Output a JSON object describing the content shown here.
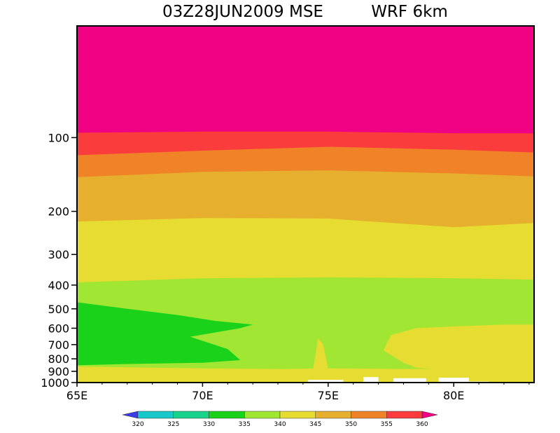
{
  "chart_data": {
    "type": "contour",
    "title_left": "03Z28JUN2009 MSE",
    "title_right": "WRF 6km",
    "x_ticks": [
      {
        "value": 65,
        "label": "65E"
      },
      {
        "value": 70,
        "label": "70E"
      },
      {
        "value": 75,
        "label": "75E"
      },
      {
        "value": 80,
        "label": "80E"
      }
    ],
    "xlim": [
      65,
      83.2
    ],
    "y_scale": "log",
    "ylim": [
      1000,
      35
    ],
    "y_ticks": [
      {
        "value": 100,
        "label": "100"
      },
      {
        "value": 200,
        "label": "200"
      },
      {
        "value": 300,
        "label": "300"
      },
      {
        "value": 400,
        "label": "400"
      },
      {
        "value": 500,
        "label": "500"
      },
      {
        "value": 600,
        "label": "600"
      },
      {
        "value": 700,
        "label": "700"
      },
      {
        "value": 800,
        "label": "800"
      },
      {
        "value": 900,
        "label": "900"
      },
      {
        "value": 1000,
        "label": "1000"
      }
    ],
    "colorbar": {
      "labels": [
        "320",
        "325",
        "330",
        "335",
        "340",
        "345",
        "350",
        "355",
        "360"
      ],
      "colors": [
        "#3a3ae8",
        "#19c8c8",
        "#19d28c",
        "#19d219",
        "#a0e632",
        "#e6dc32",
        "#e6af2d",
        "#f08228",
        "#fa3c3c",
        "#f00082"
      ]
    },
    "bands": [
      {
        "range": ">360",
        "color": "#f00082",
        "lower_boundary": [
          [
            65,
            95.5
          ],
          [
            70,
            94.5
          ],
          [
            75,
            94.5
          ],
          [
            80,
            96
          ],
          [
            83.2,
            96
          ]
        ]
      },
      {
        "range": "355-360",
        "color": "#fa3c3c",
        "lower_boundary": [
          [
            65,
            118
          ],
          [
            70,
            113
          ],
          [
            75,
            109
          ],
          [
            80,
            112
          ],
          [
            83.2,
            115
          ]
        ]
      },
      {
        "range": "350-355",
        "color": "#f08228",
        "lower_boundary": [
          [
            65,
            145
          ],
          [
            70,
            138
          ],
          [
            75,
            136
          ],
          [
            80,
            140
          ],
          [
            83.2,
            144
          ]
        ]
      },
      {
        "range": "345-350",
        "color": "#e6af2d",
        "lower_boundary": [
          [
            65,
            220
          ],
          [
            70,
            213
          ],
          [
            75,
            214
          ],
          [
            80,
            232
          ],
          [
            83.2,
            223
          ]
        ]
      },
      {
        "range": "340-345",
        "color": "#e6dc32",
        "lower_boundary": [
          [
            65,
            390
          ],
          [
            70,
            375
          ],
          [
            75,
            372
          ],
          [
            80,
            375
          ],
          [
            83.2,
            380
          ]
        ]
      },
      {
        "range": "335-340",
        "color": "#a0e632",
        "lower_boundary": [
          [
            65,
            1000
          ],
          [
            83.2,
            1000
          ]
        ]
      }
    ],
    "regions": [
      {
        "name": "low-level-green-tongue",
        "range": "330-335",
        "color": "#19d219",
        "polygon": [
          [
            65,
            470
          ],
          [
            67,
            500
          ],
          [
            69,
            530
          ],
          [
            70.5,
            560
          ],
          [
            72,
            580
          ],
          [
            71.5,
            600
          ],
          [
            69.5,
            650
          ],
          [
            71,
            730
          ],
          [
            71.5,
            810
          ],
          [
            70,
            830
          ],
          [
            67,
            840
          ],
          [
            65,
            850
          ]
        ]
      },
      {
        "name": "eastern-warm-pocket",
        "range": "340-345",
        "color": "#e6dc32",
        "polygon": [
          [
            77.5,
            640
          ],
          [
            78.5,
            600
          ],
          [
            80,
            590
          ],
          [
            82,
            580
          ],
          [
            83.2,
            580
          ],
          [
            83.2,
            870
          ],
          [
            82,
            880
          ],
          [
            80,
            890
          ],
          [
            78.5,
            870
          ],
          [
            78,
            830
          ],
          [
            77.2,
            740
          ]
        ]
      },
      {
        "name": "near-surface-layer",
        "range": "340-345",
        "color": "#e6dc32",
        "polygon": [
          [
            65,
            860
          ],
          [
            70,
            875
          ],
          [
            73,
            880
          ],
          [
            75,
            875
          ],
          [
            78,
            880
          ],
          [
            83.2,
            870
          ],
          [
            83.2,
            1000
          ],
          [
            65,
            1000
          ]
        ]
      },
      {
        "name": "spike-plume",
        "range": "340-345",
        "color": "#e6dc32",
        "polygon": [
          [
            74.4,
            880
          ],
          [
            74.6,
            660
          ],
          [
            74.8,
            700
          ],
          [
            75,
            880
          ]
        ]
      }
    ],
    "surface_gaps": [
      {
        "from_x": 74.2,
        "to_x": 75.6,
        "top_p": 975
      },
      {
        "from_x": 76.4,
        "to_x": 77.0,
        "top_p": 950
      },
      {
        "from_x": 77.6,
        "to_x": 78.9,
        "top_p": 960
      },
      {
        "from_x": 79.4,
        "to_x": 80.6,
        "top_p": 955
      },
      {
        "from_x": 80.6,
        "to_x": 81.4,
        "top_p": 990
      }
    ]
  }
}
